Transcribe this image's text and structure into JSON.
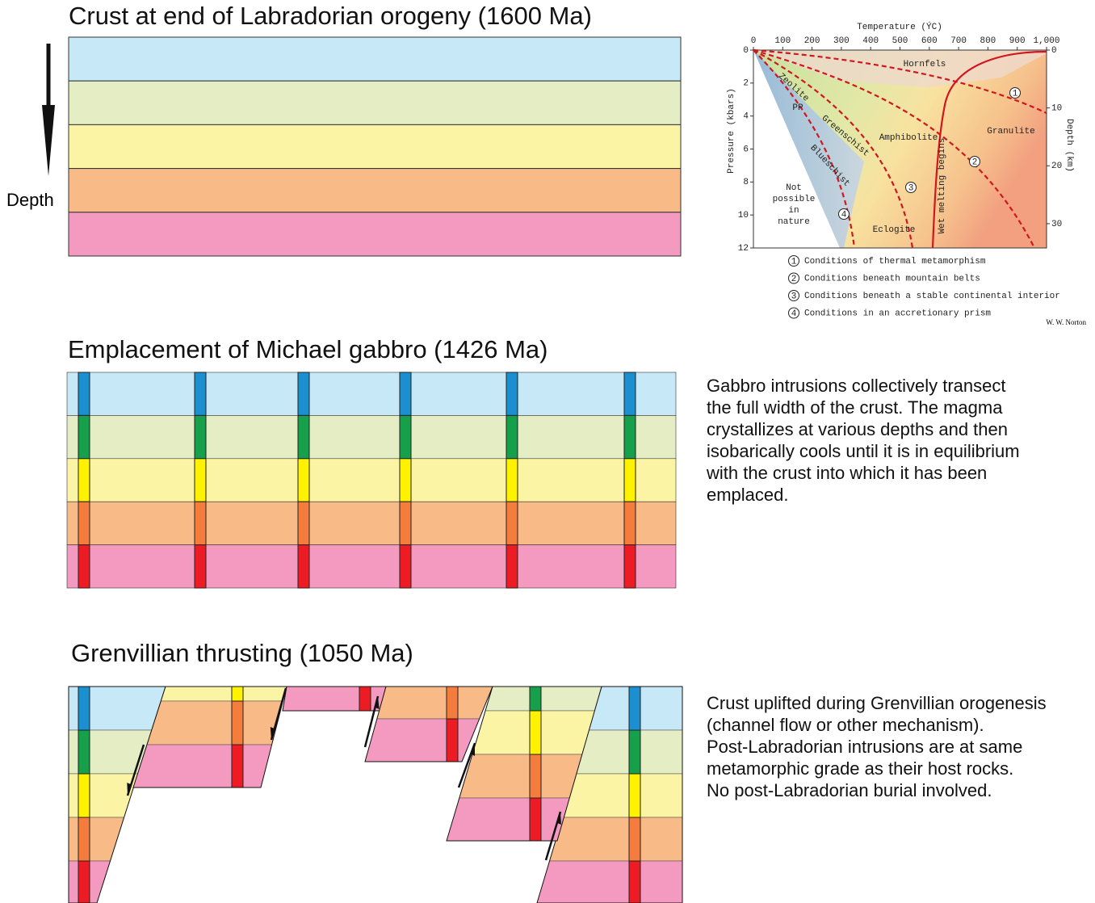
{
  "panels": [
    {
      "title": "Crust at end of Labradorian orogeny (1600 Ma)"
    },
    {
      "title": "Emplacement of Michael gabbro (1426 Ma)",
      "description": [
        "Gabbro intrusions collectively transect",
        "the full width of the crust. The magma",
        "crystallizes at various depths and then",
        "isobarically cools until it is in equilibrium",
        "with the crust into which it has been",
        "emplaced."
      ]
    },
    {
      "title": "Grenvillian thrusting (1050 Ma)",
      "description": [
        "Crust uplifted during Grenvillian orogenesis",
        "(channel flow or other mechanism).",
        "Post-Labradorian intrusions are at same",
        "metamorphic grade as their host rocks.",
        "No post-Labradorian burial involved."
      ]
    }
  ],
  "depth_label": "Depth",
  "phase_diagram": {
    "x_label": "Temperature (ÝC)",
    "y_label": "Pressure (kbars)",
    "y2_label": "Depth (km)",
    "xlim": [
      0,
      1000
    ],
    "xticks": [
      0,
      100,
      200,
      300,
      400,
      500,
      600,
      700,
      800,
      900,
      {
        "value": 1000,
        "label": "1,000"
      }
    ],
    "ylim": [
      0,
      12
    ],
    "yticks": [
      0,
      2,
      4,
      6,
      8,
      10,
      12
    ],
    "y2lim": [
      0,
      34.2
    ],
    "y2ticks": [
      0,
      10,
      20,
      30
    ],
    "fields": {
      "hornfels": "Hornfels",
      "zeolite": "Zeolite",
      "pp": "PP",
      "greenschist": "Greenschist",
      "amphibolite": "Amphibolite",
      "granulite": "Granulite",
      "blueschist": "Blueschist",
      "not_possible": [
        "Not",
        "possible",
        "in",
        "nature"
      ],
      "eclogite": "Eclogite",
      "wet_melting": "Wet melting begins"
    },
    "legend": [
      {
        "marker": 1,
        "text": "Conditions of thermal metamorphism"
      },
      {
        "marker": 2,
        "text": "Conditions beneath mountain belts"
      },
      {
        "marker": 3,
        "text": "Conditions beneath a stable continental interior"
      },
      {
        "marker": 4,
        "text": "Conditions in an accretionary prism"
      }
    ],
    "credit": "W. W. Norton"
  }
}
